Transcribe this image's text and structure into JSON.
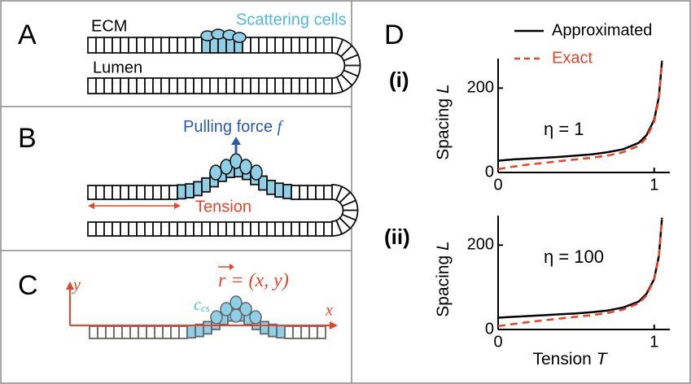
{
  "panels": {
    "A": {
      "label": "A",
      "ecm": "ECM",
      "scattering": "Scattering cells",
      "lumen": "Lumen"
    },
    "B": {
      "label": "B",
      "pulling_force": "Pulling force",
      "pulling_var": "f",
      "tension": "Tension"
    },
    "C": {
      "label": "C",
      "y_axis": "y",
      "x_axis": "x",
      "r_var": "r",
      "r_eq": "= (x, y)",
      "c_var": "c",
      "c_sub": "cs"
    },
    "D": {
      "label": "D"
    }
  },
  "chart_data": [
    {
      "type": "line",
      "panel_label": "(i)",
      "annotation": "η = 1",
      "ylabel": "Spacing",
      "ylabel_var": "L",
      "x": [
        0,
        0.1,
        0.2,
        0.3,
        0.4,
        0.5,
        0.6,
        0.7,
        0.8,
        0.9,
        0.95,
        1.0,
        1.03,
        1.05
      ],
      "series": [
        {
          "name": "Approximated",
          "color": "#000000",
          "dash": false,
          "values": [
            28,
            31,
            33,
            35,
            37,
            40,
            43,
            48,
            55,
            70,
            88,
            125,
            180,
            265
          ]
        },
        {
          "name": "Exact",
          "color": "#e8442a",
          "dash": true,
          "values": [
            8,
            14,
            19,
            23,
            27,
            31,
            35,
            40,
            48,
            63,
            82,
            120,
            175,
            262
          ]
        }
      ],
      "xlim": [
        0,
        1.1
      ],
      "ylim": [
        0,
        270
      ],
      "xticks": [
        0,
        1
      ],
      "yticks": [
        0,
        200
      ]
    },
    {
      "type": "line",
      "panel_label": "(ii)",
      "annotation": "η = 100",
      "ylabel": "Spacing",
      "ylabel_var": "L",
      "xlabel": "Tension",
      "xlabel_var": "T",
      "x": [
        0,
        0.1,
        0.2,
        0.3,
        0.4,
        0.5,
        0.6,
        0.7,
        0.8,
        0.9,
        0.95,
        1.0,
        1.03,
        1.05
      ],
      "series": [
        {
          "color": "#000000",
          "dash": false,
          "values": [
            28,
            30,
            32,
            34,
            36,
            38,
            41,
            45,
            52,
            66,
            84,
            120,
            175,
            265
          ]
        },
        {
          "color": "#e8442a",
          "dash": true,
          "values": [
            8,
            13,
            18,
            22,
            26,
            30,
            34,
            39,
            47,
            62,
            80,
            118,
            172,
            262
          ]
        }
      ],
      "xlim": [
        0,
        1.1
      ],
      "ylim": [
        0,
        270
      ],
      "xticks": [
        0,
        1
      ],
      "yticks": [
        0,
        200
      ]
    }
  ]
}
